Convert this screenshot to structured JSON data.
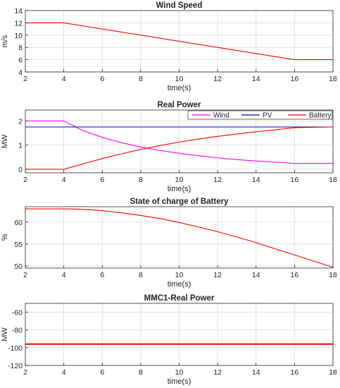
{
  "chart_data": [
    {
      "type": "line",
      "title": "Wind Speed",
      "xlabel": "time(s)",
      "ylabel": "m/s",
      "xlim": [
        2,
        18
      ],
      "ylim": [
        4,
        14
      ],
      "xticks": [
        2,
        4,
        6,
        8,
        10,
        12,
        14,
        16,
        18
      ],
      "yticks": [
        4,
        6,
        8,
        10,
        12,
        14
      ],
      "grid": true,
      "legend": null,
      "series": [
        {
          "color": "#ff0000",
          "x": [
            2,
            4,
            16,
            18
          ],
          "y": [
            12,
            12,
            6,
            6
          ]
        }
      ]
    },
    {
      "type": "line",
      "title": "Real Power",
      "xlabel": "time(s)",
      "ylabel": "MW",
      "xlim": [
        2,
        18
      ],
      "ylim": [
        -0.15,
        2.45
      ],
      "xticks": [
        2,
        4,
        6,
        8,
        10,
        12,
        14,
        16,
        18
      ],
      "yticks": [
        0,
        1,
        2
      ],
      "grid": true,
      "legend": "top-right",
      "series": [
        {
          "name": "Wind",
          "color": "#ff00ff",
          "x": [
            2,
            4,
            5,
            6,
            7,
            8,
            9,
            10,
            11,
            12,
            13,
            14,
            15,
            16,
            18
          ],
          "y": [
            2.0,
            2.0,
            1.6,
            1.32,
            1.1,
            0.92,
            0.78,
            0.66,
            0.56,
            0.47,
            0.4,
            0.34,
            0.29,
            0.24,
            0.24
          ]
        },
        {
          "name": "PV",
          "color": "#0000cc",
          "x": [
            2,
            18
          ],
          "y": [
            1.75,
            1.75
          ]
        },
        {
          "name": "Battery",
          "color": "#ff0000",
          "x": [
            2,
            4,
            5,
            6,
            7,
            8,
            9,
            10,
            11,
            12,
            13,
            14,
            15,
            16,
            18
          ],
          "y": [
            0.0,
            0.0,
            0.22,
            0.44,
            0.64,
            0.82,
            0.98,
            1.12,
            1.25,
            1.36,
            1.46,
            1.55,
            1.63,
            1.72,
            1.75
          ]
        }
      ]
    },
    {
      "type": "line",
      "title": "State of charge of Battery",
      "xlabel": "time(s)",
      "ylabel": "%",
      "xlim": [
        2,
        18
      ],
      "ylim": [
        49.5,
        63.5
      ],
      "xticks": [
        2,
        4,
        6,
        8,
        10,
        12,
        14,
        16,
        18
      ],
      "yticks": [
        50,
        55,
        60
      ],
      "grid": true,
      "legend": null,
      "series": [
        {
          "color": "#ff0000",
          "x": [
            2,
            4,
            5,
            6,
            7,
            8,
            9,
            10,
            11,
            12,
            13,
            14,
            15,
            16,
            17,
            18
          ],
          "y": [
            63,
            63,
            62.9,
            62.6,
            62.1,
            61.5,
            60.8,
            59.9,
            58.9,
            57.8,
            56.6,
            55.3,
            53.9,
            52.5,
            51.1,
            49.7
          ]
        }
      ]
    },
    {
      "type": "line",
      "title": "MMC1-Real Power",
      "xlabel": "time(s)",
      "ylabel": "MW",
      "xlim": [
        2,
        18
      ],
      "ylim": [
        -120,
        -50
      ],
      "xticks": [
        2,
        4,
        6,
        8,
        10,
        12,
        14,
        16,
        18
      ],
      "yticks": [
        -120,
        -100,
        -80,
        -60
      ],
      "grid": true,
      "legend": null,
      "series": [
        {
          "color": "#ff0000",
          "x": [
            2,
            18
          ],
          "y": [
            -96,
            -96
          ]
        }
      ]
    }
  ]
}
